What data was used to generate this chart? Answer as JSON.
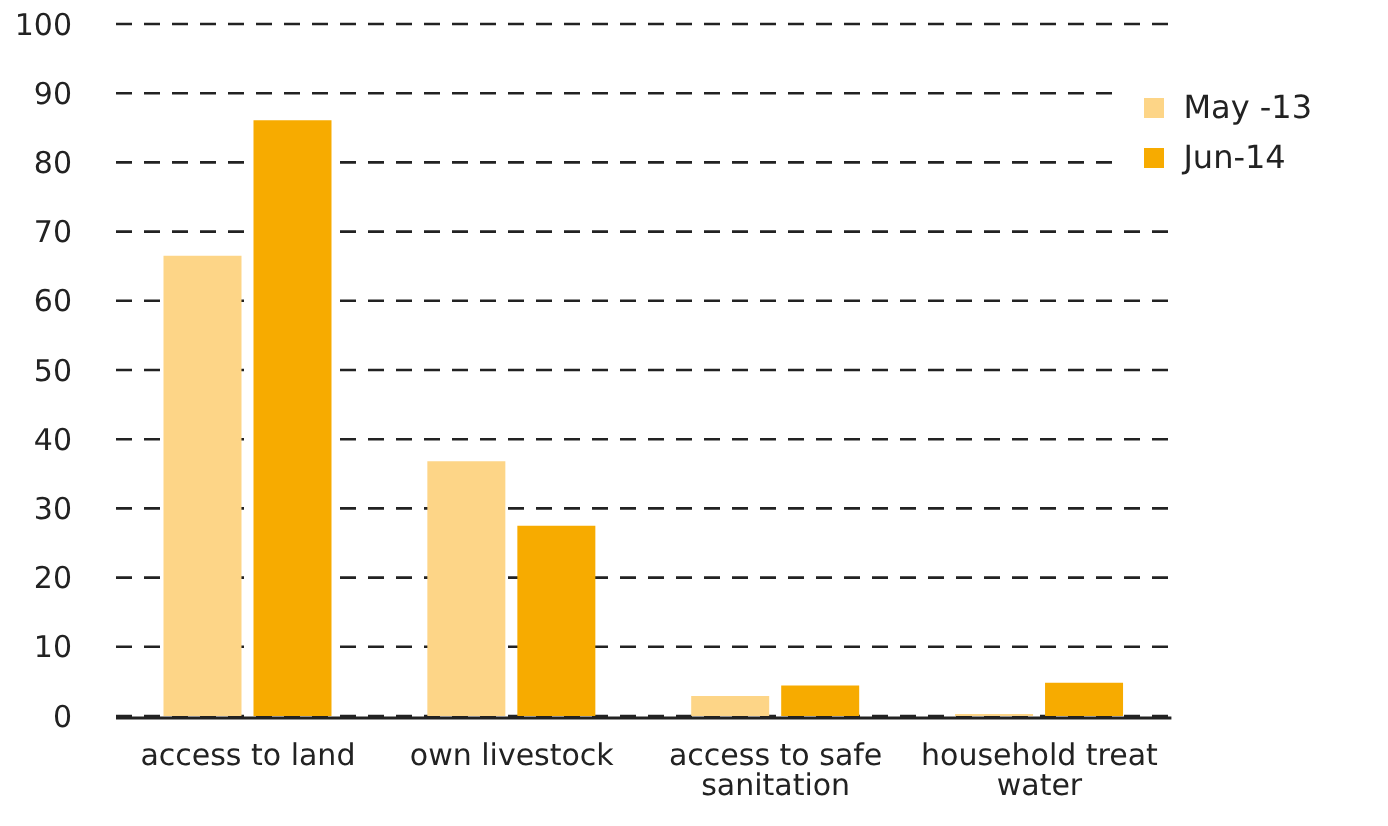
{
  "chart_data": {
    "type": "bar",
    "categories": [
      "access to land",
      "own livestock",
      "access to safe sanitation",
      "household treat water"
    ],
    "series": [
      {
        "name": "May -13",
        "color": "#fdd587",
        "values": [
          66.5,
          36.8,
          2.9,
          0.3
        ]
      },
      {
        "name": "Jun-14",
        "color": "#f7ab00",
        "values": [
          86.1,
          27.5,
          4.4,
          4.8
        ]
      }
    ],
    "ylim": [
      0,
      100
    ],
    "yticks": [
      0,
      10,
      20,
      30,
      40,
      50,
      60,
      70,
      80,
      90,
      100
    ],
    "grid": "y",
    "legend": "top right"
  }
}
